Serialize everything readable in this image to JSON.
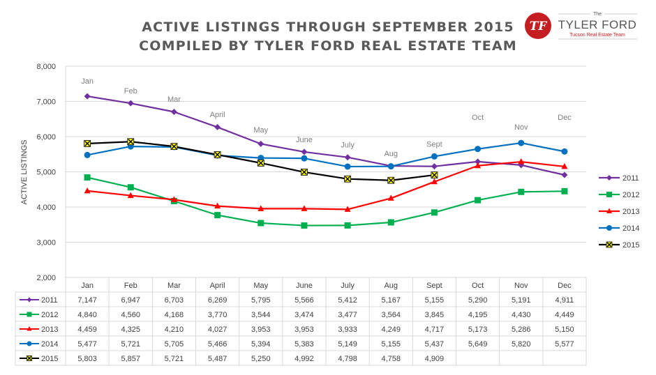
{
  "logo": {
    "small": "The",
    "brand": "TYLER FORD",
    "sub": "Tucson Real Estate Team",
    "mark": "TF"
  },
  "colors": {
    "2011": "#7030a0",
    "2012": "#00b050",
    "2013": "#ff0000",
    "2014": "#0070c0",
    "2015": "#000000",
    "marker2015": "#ffff00",
    "grid": "#d9d9d9",
    "logo_red": "#c41e22"
  },
  "chart_data": {
    "type": "line",
    "title": [
      "ACTIVE LISTINGS THROUGH SEPTEMBER 2015",
      "COMPILED BY TYLER FORD REAL ESTATE TEAM"
    ],
    "ylabel": "ACTIVE LISTINGS",
    "xlabel": "",
    "ylim": [
      2000,
      8000
    ],
    "yticks": [
      "2,000",
      "3,000",
      "4,000",
      "5,000",
      "6,000",
      "7,000",
      "8,000"
    ],
    "categories": [
      "Jan",
      "Feb",
      "Mar",
      "April",
      "May",
      "June",
      "July",
      "Aug",
      "Sept",
      "Oct",
      "Nov",
      "Dec"
    ],
    "legend_position": "right",
    "grid": "horizontal",
    "data_table": true,
    "series": [
      {
        "name": "2011",
        "marker": "diamond",
        "values": [
          7147,
          6947,
          6703,
          6269,
          5795,
          5566,
          5412,
          5167,
          5155,
          5290,
          5191,
          4911
        ],
        "labels": [
          "7,147",
          "6,947",
          "6,703",
          "6,269",
          "5,795",
          "5,566",
          "5,412",
          "5,167",
          "5,155",
          "5,290",
          "5,191",
          "4,911"
        ]
      },
      {
        "name": "2012",
        "marker": "square",
        "values": [
          4840,
          4560,
          4168,
          3770,
          3544,
          3474,
          3477,
          3564,
          3845,
          4195,
          4430,
          4449
        ],
        "labels": [
          "4,840",
          "4,560",
          "4,168",
          "3,770",
          "3,544",
          "3,474",
          "3,477",
          "3,564",
          "3,845",
          "4,195",
          "4,430",
          "4,449"
        ]
      },
      {
        "name": "2013",
        "marker": "triangle",
        "values": [
          4459,
          4325,
          4210,
          4027,
          3953,
          3953,
          3933,
          4249,
          4717,
          5173,
          5286,
          5150
        ],
        "labels": [
          "4,459",
          "4,325",
          "4,210",
          "4,027",
          "3,953",
          "3,953",
          "3,933",
          "4,249",
          "4,717",
          "5,173",
          "5,286",
          "5,150"
        ]
      },
      {
        "name": "2014",
        "marker": "circle",
        "values": [
          5477,
          5721,
          5705,
          5466,
          5394,
          5383,
          5149,
          5155,
          5437,
          5649,
          5820,
          5577
        ],
        "labels": [
          "5,477",
          "5,721",
          "5,705",
          "5,466",
          "5,394",
          "5,383",
          "5,149",
          "5,155",
          "5,437",
          "5,649",
          "5,820",
          "5,577"
        ]
      },
      {
        "name": "2015",
        "marker": "x",
        "values": [
          5803,
          5857,
          5721,
          5487,
          5250,
          4992,
          4798,
          4758,
          4909,
          null,
          null,
          null
        ],
        "labels": [
          "5,803",
          "5,857",
          "5,721",
          "5,487",
          "5,250",
          "4,992",
          "4,798",
          "4,758",
          "4,909",
          "",
          "",
          ""
        ]
      }
    ]
  }
}
